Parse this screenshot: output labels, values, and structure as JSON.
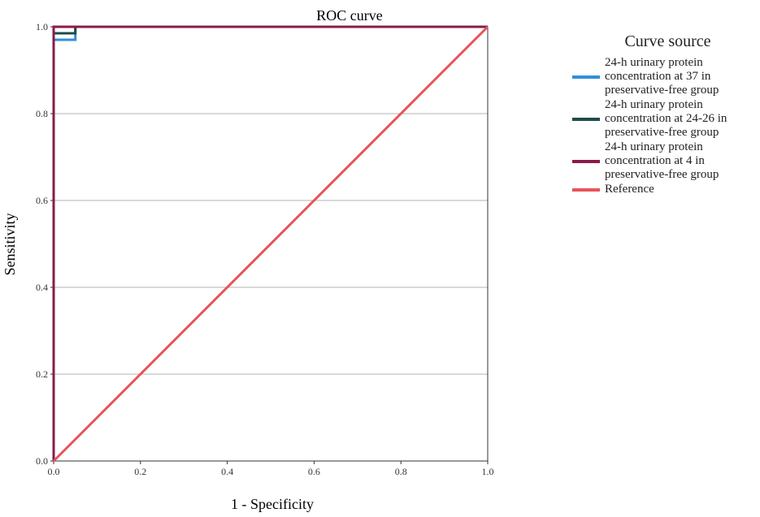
{
  "chart_data": {
    "type": "line",
    "title": "ROC curve",
    "xlabel": "1 - Specificity",
    "ylabel": "Sensitivity",
    "xlim": [
      0,
      1
    ],
    "ylim": [
      0,
      1
    ],
    "xticks": [
      "0.0",
      "0.2",
      "0.4",
      "0.6",
      "0.8",
      "1.0"
    ],
    "yticks": [
      "0.0",
      "0.2",
      "0.4",
      "0.6",
      "0.8",
      "1.0"
    ],
    "grid": "horizontal",
    "legend": {
      "title": "Curve source",
      "position": "right"
    },
    "series": [
      {
        "name": "24-h urinary protein concentration at 37 in preservative-free group",
        "color": "#2e8fd8",
        "x": [
          0,
          0,
          0.05,
          0.05,
          1
        ],
        "y": [
          0,
          0.97,
          0.97,
          1,
          1
        ]
      },
      {
        "name": "24-h urinary protein concentration at 24-26 in preservative-free group",
        "color": "#1d4d4a",
        "x": [
          0,
          0,
          0.05,
          0.05,
          1
        ],
        "y": [
          0,
          0.985,
          0.985,
          1,
          1
        ]
      },
      {
        "name": "24-h urinary protein concentration at 4 in preservative-free group",
        "color": "#8b1a4a",
        "x": [
          0,
          0,
          1
        ],
        "y": [
          0,
          1,
          1
        ]
      },
      {
        "name": "Reference",
        "color": "#e8535a",
        "x": [
          0,
          1
        ],
        "y": [
          0,
          1
        ]
      }
    ]
  }
}
